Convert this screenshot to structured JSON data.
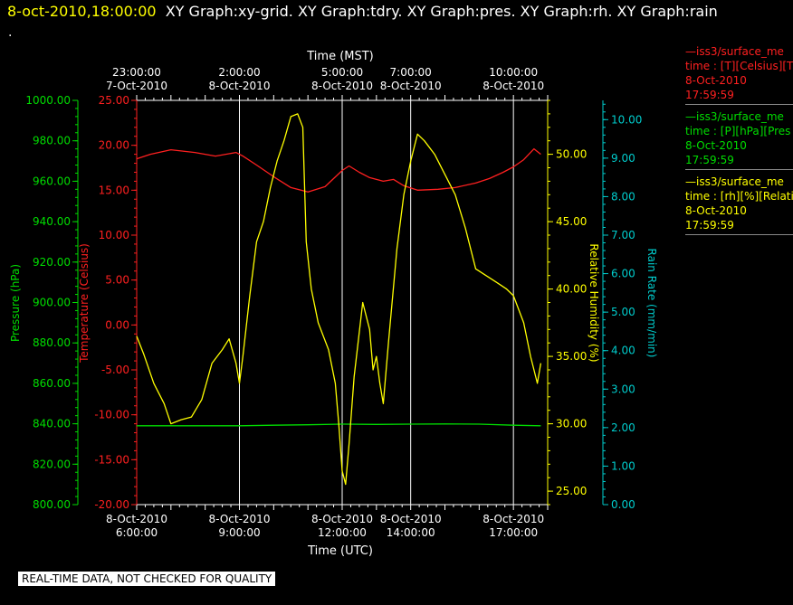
{
  "header": {
    "timestamp": "8-oct-2010,18:00:00",
    "graphs": "XY Graph:xy-grid.  XY Graph:tdry.  XY Graph:pres.  XY Graph:rh.  XY Graph:rain",
    "dot": "."
  },
  "legend": [
    {
      "line1": "—iss3/surface_me",
      "line2": "time : [T][Celsius][T",
      "line3": "8-Oct-2010",
      "line4": "17:59:59",
      "color": "#ff0000"
    },
    {
      "line1": "—iss3/surface_me",
      "line2": "time : [P][hPa][Pres",
      "line3": "8-Oct-2010",
      "line4": "17:59:59",
      "color": "#00dd00"
    },
    {
      "line1": "—iss3/surface_me",
      "line2": "time : [rh][%][Relati",
      "line3": "8-Oct-2010",
      "line4": "17:59:59",
      "color": "#ffff00"
    }
  ],
  "footer": "REAL-TIME DATA, NOT CHECKED FOR QUALITY",
  "chart_data": {
    "type": "line",
    "title": "",
    "xlabel": "Time (UTC)",
    "x2label": "Time (MST)",
    "xlim_hours_utc": [
      6.0,
      18.0
    ],
    "grid": "vertical lines at bottom ticks",
    "x_ticks": [
      {
        "value": 6,
        "date": "8-Oct-2010",
        "time": "6:00:00"
      },
      {
        "value": 9,
        "date": "8-Oct-2010",
        "time": "9:00:00"
      },
      {
        "value": 12,
        "date": "8-Oct-2010",
        "time": "12:00:00"
      },
      {
        "value": 14,
        "date": "8-Oct-2010",
        "time": "14:00:00"
      },
      {
        "value": 17,
        "date": "8-Oct-2010",
        "time": "17:00:00"
      }
    ],
    "x2_ticks": [
      {
        "value": 6,
        "time": "23:00:00",
        "date": "7-Oct-2010"
      },
      {
        "value": 9,
        "time": "2:00:00",
        "date": "8-Oct-2010"
      },
      {
        "value": 12,
        "time": "5:00:00",
        "date": "8-Oct-2010"
      },
      {
        "value": 14,
        "time": "7:00:00",
        "date": "8-Oct-2010"
      },
      {
        "value": 17,
        "time": "10:00:00",
        "date": "8-Oct-2010"
      }
    ],
    "axes": [
      {
        "id": "pressure",
        "label": "Pressure (hPa)",
        "color": "#00dd00",
        "ylim": [
          800,
          1000
        ],
        "ticks": [
          "800.00",
          "820.00",
          "840.00",
          "860.00",
          "880.00",
          "900.00",
          "920.00",
          "940.00",
          "960.00",
          "980.00",
          "1000.00"
        ]
      },
      {
        "id": "temperature",
        "label": "Temperature (Celsius)",
        "color": "#ff2020",
        "ylim": [
          -20,
          25
        ],
        "ticks": [
          "-20.00",
          "-15.00",
          "-10.00",
          "-5.00",
          "0.00",
          "5.00",
          "10.00",
          "15.00",
          "20.00",
          "25.00"
        ]
      },
      {
        "id": "rh",
        "label": "Relative Humidity (%)",
        "color": "#ffff00",
        "ylim": [
          24,
          54
        ],
        "ticks": [
          "25.00",
          "30.00",
          "35.00",
          "40.00",
          "45.00",
          "50.00"
        ]
      },
      {
        "id": "rain",
        "label": "Rain Rate (mm/min)",
        "color": "#00cccc",
        "ylim": [
          0,
          10.5
        ],
        "ticks": [
          "0.00",
          "1.00",
          "2.00",
          "3.00",
          "4.00",
          "5.00",
          "6.00",
          "7.00",
          "8.00",
          "9.00",
          "10.00"
        ]
      }
    ],
    "series": [
      {
        "axis": "temperature",
        "color": "#ff2020",
        "points": [
          [
            6.0,
            18.5
          ],
          [
            6.4,
            19.0
          ],
          [
            7.0,
            19.5
          ],
          [
            7.7,
            19.2
          ],
          [
            8.3,
            18.8
          ],
          [
            8.9,
            19.2
          ],
          [
            9.1,
            18.8
          ],
          [
            9.5,
            17.8
          ],
          [
            10.0,
            16.5
          ],
          [
            10.5,
            15.3
          ],
          [
            11.0,
            14.8
          ],
          [
            11.5,
            15.4
          ],
          [
            12.0,
            17.2
          ],
          [
            12.2,
            17.7
          ],
          [
            12.5,
            17.0
          ],
          [
            12.8,
            16.4
          ],
          [
            13.2,
            16.0
          ],
          [
            13.5,
            16.2
          ],
          [
            13.8,
            15.5
          ],
          [
            14.2,
            15.0
          ],
          [
            14.8,
            15.1
          ],
          [
            15.3,
            15.3
          ],
          [
            15.9,
            15.8
          ],
          [
            16.3,
            16.3
          ],
          [
            16.7,
            17.0
          ],
          [
            17.0,
            17.6
          ],
          [
            17.3,
            18.4
          ],
          [
            17.6,
            19.6
          ],
          [
            17.8,
            19.0
          ]
        ]
      },
      {
        "axis": "pressure",
        "color": "#00dd00",
        "points": [
          [
            6.0,
            839.0
          ],
          [
            7.0,
            839.0
          ],
          [
            8.0,
            839.0
          ],
          [
            9.0,
            839.0
          ],
          [
            10.0,
            839.3
          ],
          [
            11.0,
            839.5
          ],
          [
            12.0,
            839.8
          ],
          [
            13.0,
            839.7
          ],
          [
            14.0,
            839.8
          ],
          [
            15.0,
            839.9
          ],
          [
            16.0,
            839.8
          ],
          [
            17.0,
            839.3
          ],
          [
            17.8,
            839.0
          ]
        ]
      },
      {
        "axis": "rh",
        "color": "#ffff00",
        "points": [
          [
            6.0,
            36.5
          ],
          [
            6.2,
            35.2
          ],
          [
            6.5,
            33.0
          ],
          [
            6.8,
            31.5
          ],
          [
            7.0,
            30.0
          ],
          [
            7.3,
            30.3
          ],
          [
            7.6,
            30.5
          ],
          [
            7.9,
            31.8
          ],
          [
            8.2,
            34.5
          ],
          [
            8.5,
            35.5
          ],
          [
            8.7,
            36.3
          ],
          [
            8.9,
            34.5
          ],
          [
            9.0,
            33.0
          ],
          [
            9.1,
            35.0
          ],
          [
            9.3,
            39.5
          ],
          [
            9.5,
            43.5
          ],
          [
            9.7,
            45.0
          ],
          [
            9.9,
            47.5
          ],
          [
            10.1,
            49.5
          ],
          [
            10.3,
            51.0
          ],
          [
            10.5,
            52.8
          ],
          [
            10.7,
            53.0
          ],
          [
            10.85,
            52.0
          ],
          [
            10.95,
            43.5
          ],
          [
            11.1,
            40.0
          ],
          [
            11.3,
            37.5
          ],
          [
            11.6,
            35.5
          ],
          [
            11.8,
            33.0
          ],
          [
            11.9,
            30.0
          ],
          [
            12.0,
            26.5
          ],
          [
            12.1,
            25.5
          ],
          [
            12.2,
            28.5
          ],
          [
            12.35,
            33.5
          ],
          [
            12.6,
            39.0
          ],
          [
            12.8,
            37.0
          ],
          [
            12.9,
            34.0
          ],
          [
            13.0,
            35.0
          ],
          [
            13.1,
            33.0
          ],
          [
            13.2,
            31.5
          ],
          [
            13.35,
            36.0
          ],
          [
            13.6,
            43.0
          ],
          [
            13.8,
            47.0
          ],
          [
            14.0,
            49.5
          ],
          [
            14.2,
            51.5
          ],
          [
            14.4,
            51.0
          ],
          [
            14.7,
            50.0
          ],
          [
            15.0,
            48.5
          ],
          [
            15.3,
            47.0
          ],
          [
            15.6,
            44.5
          ],
          [
            15.9,
            41.5
          ],
          [
            16.2,
            41.0
          ],
          [
            16.5,
            40.5
          ],
          [
            16.8,
            40.0
          ],
          [
            17.0,
            39.5
          ],
          [
            17.3,
            37.5
          ],
          [
            17.5,
            35.0
          ],
          [
            17.7,
            33.0
          ],
          [
            17.8,
            34.5
          ]
        ]
      }
    ]
  }
}
